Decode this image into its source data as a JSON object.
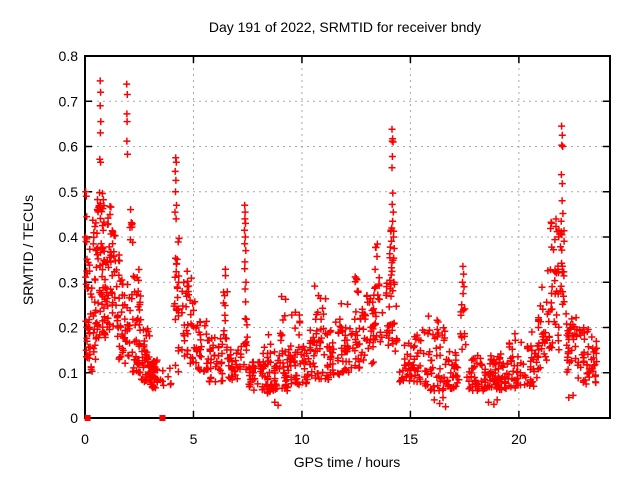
{
  "chart_data": {
    "type": "scatter",
    "title": "Day 191 of 2022, SRMTID for receiver bndy",
    "xlabel": "GPS time / hours",
    "ylabel": "SRMTID / TECUs",
    "xlim": [
      0,
      24.2
    ],
    "ylim": [
      0,
      0.8
    ],
    "xticks": [
      0,
      5,
      10,
      15,
      20
    ],
    "xtick_labels": [
      "0",
      "5",
      "10",
      "15",
      "20"
    ],
    "yticks": [
      0,
      0.1,
      0.2,
      0.3,
      0.4,
      0.5,
      0.6,
      0.7,
      0.8
    ],
    "ytick_labels": [
      "0",
      "0.1",
      "0.2",
      "0.3",
      "0.4",
      "0.5",
      "0.6",
      "0.7",
      "0.8"
    ],
    "grid": true,
    "legend": "none",
    "series": [
      {
        "name": "srmtid-values",
        "marker": "plus",
        "color": "#ff0000",
        "seed": 191,
        "spike_points": [
          [
            0.03,
            0.5
          ],
          [
            0.06,
            0.49
          ],
          [
            0.02,
            0.4
          ],
          [
            0.05,
            0.39
          ],
          [
            0.08,
            0.445
          ],
          [
            0.7,
            0.745
          ],
          [
            0.72,
            0.72
          ],
          [
            0.7,
            0.69
          ],
          [
            0.73,
            0.655
          ],
          [
            0.71,
            0.63
          ],
          [
            0.68,
            0.572
          ],
          [
            0.72,
            0.565
          ],
          [
            1.92,
            0.738
          ],
          [
            1.95,
            0.715
          ],
          [
            1.93,
            0.672
          ],
          [
            1.94,
            0.655
          ],
          [
            1.93,
            0.612
          ],
          [
            1.96,
            0.583
          ],
          [
            4.18,
            0.575
          ],
          [
            4.21,
            0.565
          ],
          [
            4.16,
            0.545
          ],
          [
            4.19,
            0.525
          ],
          [
            4.17,
            0.5
          ],
          [
            4.22,
            0.47
          ],
          [
            4.15,
            0.455
          ],
          [
            4.2,
            0.44
          ],
          [
            7.36,
            0.47
          ],
          [
            7.38,
            0.455
          ],
          [
            7.37,
            0.44
          ],
          [
            7.4,
            0.43
          ],
          [
            7.35,
            0.415
          ],
          [
            7.39,
            0.4
          ],
          [
            7.36,
            0.385
          ],
          [
            7.41,
            0.37
          ],
          [
            7.37,
            0.345
          ],
          [
            7.36,
            0.33
          ],
          [
            7.42,
            0.3
          ],
          [
            7.38,
            0.285
          ],
          [
            8.75,
            0.035
          ],
          [
            8.9,
            0.028
          ],
          [
            14.15,
            0.638
          ],
          [
            14.18,
            0.617
          ],
          [
            14.16,
            0.612
          ],
          [
            14.2,
            0.61
          ],
          [
            14.17,
            0.578
          ],
          [
            14.15,
            0.553
          ],
          [
            14.19,
            0.497
          ],
          [
            14.16,
            0.472
          ],
          [
            14.21,
            0.455
          ],
          [
            14.18,
            0.435
          ],
          [
            14.14,
            0.42
          ],
          [
            14.22,
            0.4
          ],
          [
            16.1,
            0.04
          ],
          [
            16.35,
            0.032
          ],
          [
            16.5,
            0.045
          ],
          [
            16.62,
            0.025
          ],
          [
            17.42,
            0.335
          ],
          [
            17.45,
            0.318
          ],
          [
            17.4,
            0.3
          ],
          [
            17.47,
            0.29
          ],
          [
            17.43,
            0.275
          ],
          [
            18.6,
            0.035
          ],
          [
            18.85,
            0.03
          ],
          [
            19.0,
            0.04
          ],
          [
            20.6,
            0.19
          ],
          [
            20.9,
            0.2
          ],
          [
            21.97,
            0.645
          ],
          [
            22.0,
            0.625
          ],
          [
            21.98,
            0.603
          ],
          [
            22.02,
            0.6
          ],
          [
            21.96,
            0.538
          ],
          [
            22.0,
            0.518
          ],
          [
            21.99,
            0.48
          ],
          [
            22.03,
            0.452
          ],
          [
            21.95,
            0.435
          ],
          [
            22.3,
            0.045
          ],
          [
            22.5,
            0.05
          ]
        ],
        "noise_bands": [
          [
            0.02,
            0.25,
            0.13,
            0.4,
            25,
            1.2
          ],
          [
            0.1,
            0.5,
            0.1,
            0.3,
            25,
            1.3
          ],
          [
            0.3,
            0.55,
            0.3,
            0.46,
            10,
            1
          ],
          [
            0.5,
            0.95,
            0.17,
            0.4,
            45,
            1.2
          ],
          [
            0.55,
            0.9,
            0.4,
            0.52,
            18,
            1
          ],
          [
            0.95,
            1.4,
            0.18,
            0.42,
            40,
            1.2
          ],
          [
            1.0,
            1.3,
            0.42,
            0.47,
            6,
            1
          ],
          [
            1.4,
            1.8,
            0.13,
            0.33,
            30,
            1.3
          ],
          [
            1.4,
            1.7,
            0.3,
            0.385,
            6,
            1
          ],
          [
            1.8,
            2.1,
            0.12,
            0.3,
            20,
            1.3
          ],
          [
            2.05,
            2.2,
            0.38,
            0.465,
            8,
            1
          ],
          [
            2.1,
            2.6,
            0.1,
            0.28,
            40,
            1.4
          ],
          [
            2.2,
            2.6,
            0.26,
            0.33,
            6,
            1
          ],
          [
            2.6,
            3.05,
            0.08,
            0.2,
            40,
            1.4
          ],
          [
            3.0,
            3.35,
            0.065,
            0.13,
            35,
            1.2
          ],
          [
            3.4,
            4.05,
            0.07,
            0.12,
            8,
            1.2
          ],
          [
            4.1,
            4.35,
            0.1,
            0.42,
            25,
            1
          ],
          [
            4.45,
            5.1,
            0.12,
            0.28,
            35,
            1.3
          ],
          [
            4.5,
            5.0,
            0.28,
            0.335,
            6,
            1
          ],
          [
            5.1,
            5.7,
            0.1,
            0.22,
            30,
            1.3
          ],
          [
            5.7,
            6.35,
            0.08,
            0.185,
            35,
            1.3
          ],
          [
            6.38,
            6.6,
            0.13,
            0.335,
            16,
            1
          ],
          [
            6.6,
            7.25,
            0.08,
            0.16,
            30,
            1.3
          ],
          [
            7.3,
            7.5,
            0.1,
            0.27,
            12,
            1
          ],
          [
            7.55,
            8.6,
            0.055,
            0.125,
            55,
            1.2
          ],
          [
            8.2,
            8.6,
            0.12,
            0.2,
            8,
            1.2
          ],
          [
            8.6,
            9.35,
            0.06,
            0.15,
            40,
            1.3
          ],
          [
            8.95,
            9.25,
            0.17,
            0.28,
            8,
            1
          ],
          [
            9.35,
            10.25,
            0.07,
            0.165,
            45,
            1.3
          ],
          [
            9.5,
            10.1,
            0.17,
            0.26,
            7,
            1
          ],
          [
            10.25,
            11.25,
            0.085,
            0.2,
            50,
            1.3
          ],
          [
            10.5,
            11.1,
            0.2,
            0.31,
            10,
            1
          ],
          [
            11.25,
            12.25,
            0.095,
            0.2,
            50,
            1.3
          ],
          [
            11.4,
            12.2,
            0.2,
            0.26,
            6,
            1
          ],
          [
            12.25,
            12.75,
            0.11,
            0.24,
            25,
            1.2
          ],
          [
            12.45,
            12.6,
            0.24,
            0.335,
            7,
            1
          ],
          [
            12.75,
            13.75,
            0.12,
            0.28,
            50,
            1.2
          ],
          [
            13.35,
            13.6,
            0.28,
            0.385,
            10,
            1
          ],
          [
            13.8,
            14.4,
            0.14,
            0.3,
            30,
            1.2
          ],
          [
            14.0,
            14.3,
            0.28,
            0.42,
            18,
            1
          ],
          [
            14.45,
            15.55,
            0.08,
            0.185,
            50,
            1.3
          ],
          [
            15.55,
            16.7,
            0.06,
            0.2,
            50,
            1.3
          ],
          [
            15.8,
            16.6,
            0.18,
            0.23,
            6,
            1
          ],
          [
            16.7,
            17.25,
            0.065,
            0.15,
            28,
            1.3
          ],
          [
            17.3,
            17.55,
            0.14,
            0.27,
            12,
            1
          ],
          [
            17.6,
            18.45,
            0.06,
            0.14,
            40,
            1.3
          ],
          [
            18.45,
            19.25,
            0.06,
            0.145,
            55,
            1.2
          ],
          [
            19.25,
            20.3,
            0.065,
            0.16,
            45,
            1.3
          ],
          [
            19.4,
            20.2,
            0.16,
            0.205,
            6,
            1
          ],
          [
            20.3,
            20.9,
            0.07,
            0.165,
            30,
            1.3
          ],
          [
            20.85,
            21.3,
            0.1,
            0.3,
            25,
            1.2
          ],
          [
            21.3,
            21.85,
            0.14,
            0.35,
            30,
            1.1
          ],
          [
            21.45,
            21.85,
            0.3,
            0.46,
            15,
            1
          ],
          [
            21.9,
            22.1,
            0.25,
            0.42,
            18,
            1
          ],
          [
            22.15,
            22.65,
            0.1,
            0.235,
            30,
            1.2
          ],
          [
            22.65,
            23.6,
            0.075,
            0.2,
            55,
            1.2
          ]
        ]
      },
      {
        "name": "baseline-markers",
        "marker": "filled-square",
        "color": "#ff0000",
        "points": [
          [
            0.12,
            0
          ],
          [
            3.57,
            0
          ]
        ]
      }
    ]
  },
  "colors": {
    "background": "#ffffff",
    "plot_border": "#000000",
    "grid": "#a8a8a8",
    "text": "#000000",
    "marker": "#ff0000"
  }
}
